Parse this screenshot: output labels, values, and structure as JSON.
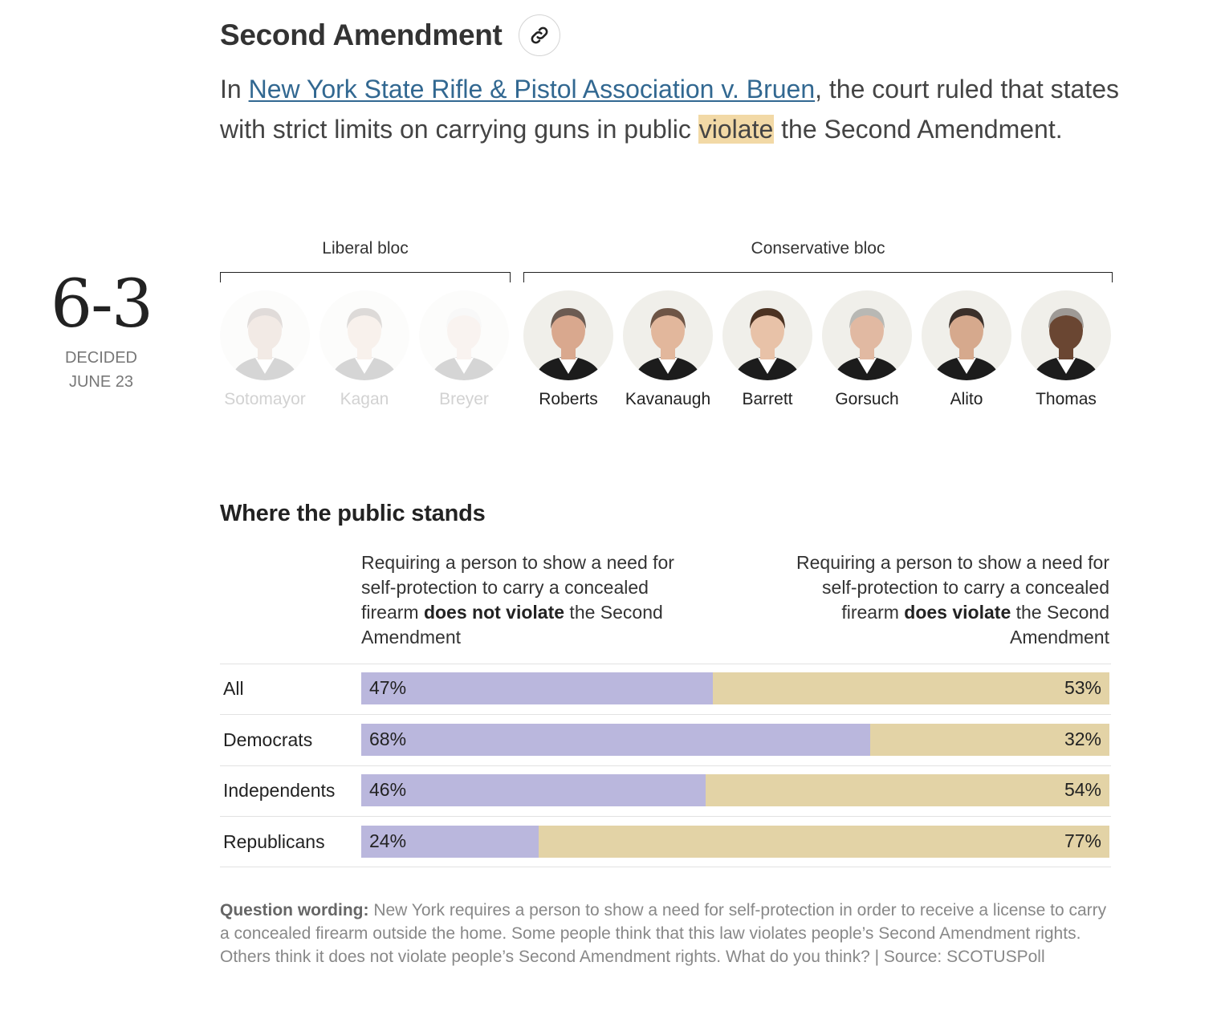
{
  "header": {
    "title": "Second Amendment",
    "link_icon": "link-icon"
  },
  "intro": {
    "prefix": "In ",
    "case_link": "New York State Rifle & Pistol Association v. Bruen",
    "middle": ", the court ruled that states with strict limits on carrying guns in public ",
    "highlight": "violate",
    "suffix": " the Second Amendment."
  },
  "decision": {
    "score": "6-3",
    "decided_label": "DECIDED",
    "date": "JUNE 23"
  },
  "blocs": {
    "liberal": "Liberal bloc",
    "conservative": "Conservative bloc"
  },
  "justices": [
    {
      "name": "Sotomayor",
      "majority": false,
      "hair": "#5a4034",
      "skin": "#b98e76",
      "shirt": "#ffffff"
    },
    {
      "name": "Kagan",
      "majority": false,
      "hair": "#4a3a30",
      "skin": "#d9b39a",
      "shirt": "#ffffff"
    },
    {
      "name": "Breyer",
      "majority": false,
      "hair": "#dcdcdc",
      "skin": "#e0c2ae",
      "shirt": "#ffffff"
    },
    {
      "name": "Roberts",
      "majority": true,
      "hair": "#6b5b52",
      "skin": "#d9a88e",
      "shirt": "#ffffff"
    },
    {
      "name": "Kavanaugh",
      "majority": true,
      "hair": "#6e5546",
      "skin": "#e2b79c",
      "shirt": "#ffffff"
    },
    {
      "name": "Barrett",
      "majority": true,
      "hair": "#4b3222",
      "skin": "#e8c2a8",
      "shirt": "#ffffff"
    },
    {
      "name": "Gorsuch",
      "majority": true,
      "hair": "#b8b8b4",
      "skin": "#e1b9a2",
      "shirt": "#ffffff"
    },
    {
      "name": "Alito",
      "majority": true,
      "hair": "#3b302a",
      "skin": "#d6a98d",
      "shirt": "#ffffff"
    },
    {
      "name": "Thomas",
      "majority": true,
      "hair": "#9e9a96",
      "skin": "#6a4632",
      "shirt": "#ffffff"
    }
  ],
  "public": {
    "title": "Where the public stands",
    "col_left": {
      "pre": "Requiring a person to show a need for self-protection to carry a concealed firearm ",
      "bold": "does not violate",
      "post": " the Second Amendment"
    },
    "col_right": {
      "pre": "Requiring a person to show a need for self-protection to carry a concealed firearm ",
      "bold": "does violate",
      "post": " the Second Amendment"
    }
  },
  "chart_data": {
    "type": "bar",
    "stacked": true,
    "orientation": "horizontal",
    "categories": [
      "All",
      "Democrats",
      "Independents",
      "Republicans"
    ],
    "series": [
      {
        "name": "Requiring a person to show a need for self-protection to carry a concealed firearm does not violate the Second Amendment",
        "values": [
          47,
          68,
          46,
          24
        ],
        "labels": [
          "47%",
          "68%",
          "46%",
          "24%"
        ],
        "color": "#bab7dd"
      },
      {
        "name": "Requiring a person to show a need for self-protection to carry a concealed firearm does violate the Second Amendment",
        "values": [
          53,
          32,
          54,
          77
        ],
        "labels": [
          "53%",
          "32%",
          "54%",
          "77%"
        ],
        "color": "#e3d3a6"
      }
    ]
  },
  "note": {
    "label": "Question wording:",
    "text": " New York requires a person to show a need for self-protection in order to receive a license to carry a concealed firearm outside the home. Some people think that this law violates people’s Second Amendment rights. Others think it does not violate people’s Second Amendment rights. What do you think? | Source: SCOTUSPoll"
  }
}
